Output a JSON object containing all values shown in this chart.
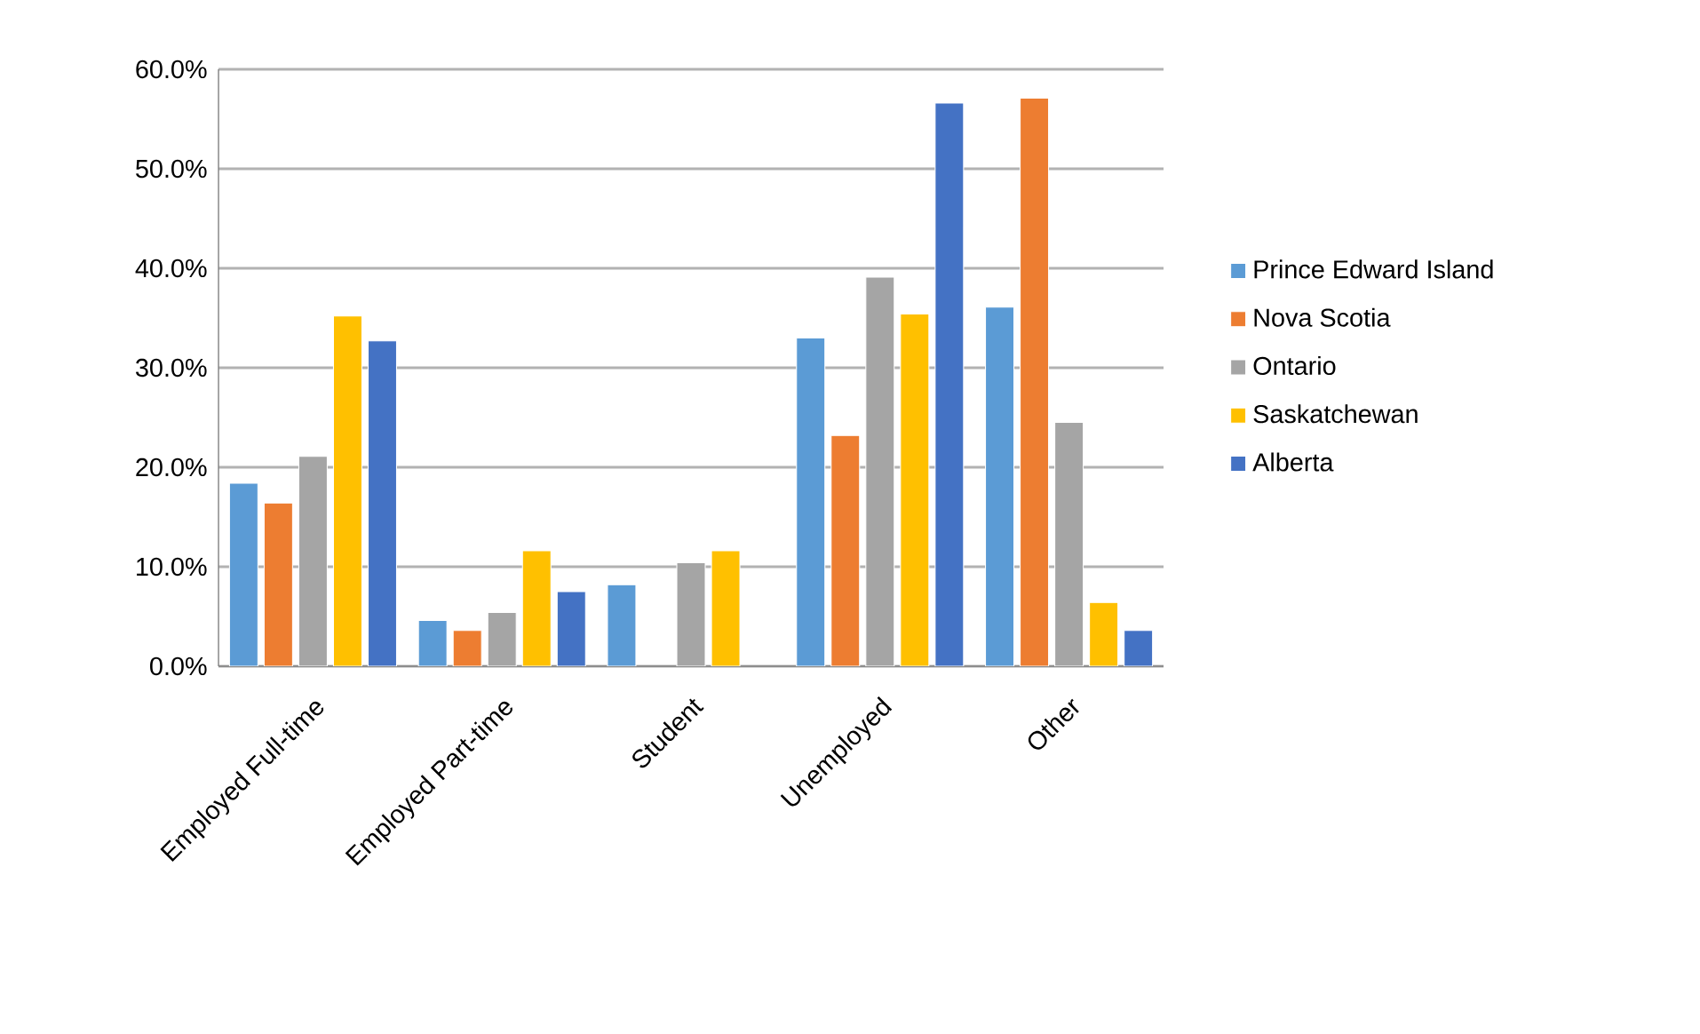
{
  "chart_data": {
    "type": "bar",
    "categories": [
      "Employed Full-time",
      "Employed Part-time",
      "Student",
      "Unemployed",
      "Other"
    ],
    "series": [
      {
        "name": "Prince Edward Island",
        "color": "#5b9bd5",
        "values": [
          18.4,
          4.6,
          8.2,
          33.0,
          36.1
        ]
      },
      {
        "name": "Nova Scotia",
        "color": "#ed7d31",
        "values": [
          16.4,
          3.6,
          null,
          23.2,
          57.1
        ]
      },
      {
        "name": "Ontario",
        "color": "#a5a5a5",
        "values": [
          21.1,
          5.4,
          10.4,
          39.1,
          24.5
        ]
      },
      {
        "name": "Saskatchewan",
        "color": "#ffc000",
        "values": [
          35.2,
          11.6,
          11.6,
          35.4,
          6.4
        ]
      },
      {
        "name": "Alberta",
        "color": "#4472c4",
        "values": [
          32.7,
          7.5,
          null,
          56.6,
          3.6
        ]
      }
    ],
    "ylim": [
      0,
      60
    ],
    "yticks": [
      {
        "value": 0,
        "label": "0.0%"
      },
      {
        "value": 10,
        "label": "10.0%"
      },
      {
        "value": 20,
        "label": "20.0%"
      },
      {
        "value": 30,
        "label": "30.0%"
      },
      {
        "value": 40,
        "label": "40.0%"
      },
      {
        "value": 50,
        "label": "50.0%"
      },
      {
        "value": 60,
        "label": "60.0%"
      }
    ],
    "grid": "y",
    "legend": "right"
  }
}
